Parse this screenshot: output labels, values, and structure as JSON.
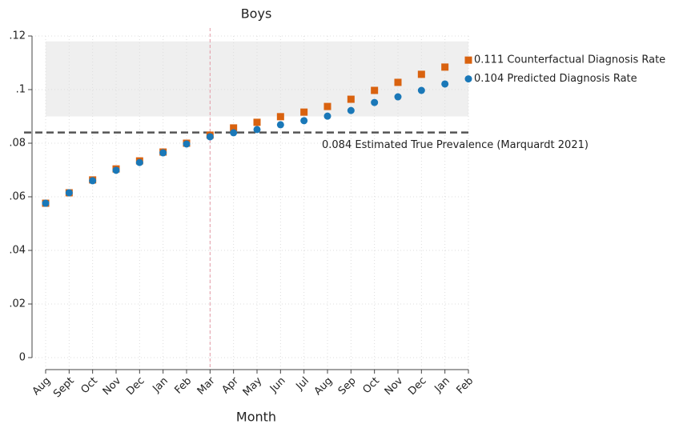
{
  "chart_data": {
    "type": "scatter",
    "title": "Boys",
    "x_label": "Month",
    "categories": [
      "Aug",
      "Sept",
      "Oct",
      "Nov",
      "Dec",
      "Jan",
      "Feb",
      "Mar",
      "Apr",
      "May",
      "Jun",
      "Jul",
      "Aug",
      "Sep",
      "Oct",
      "Nov",
      "Dec",
      "Jan",
      "Feb"
    ],
    "series": [
      {
        "name": "0.111 Counterfactual Diagnosis Rate",
        "color": "#d9620f",
        "marker": "square",
        "values": [
          0.0576,
          0.0615,
          0.0663,
          0.0704,
          0.0734,
          0.0767,
          0.08,
          0.083,
          0.0857,
          0.0878,
          0.0899,
          0.0916,
          0.0937,
          0.0964,
          0.0997,
          0.1027,
          0.1057,
          0.1084,
          0.111
        ]
      },
      {
        "name": "0.104 Predicted Diagnosis Rate",
        "color": "#1a78b8",
        "marker": "circle",
        "values": [
          0.0576,
          0.0615,
          0.066,
          0.0699,
          0.0728,
          0.0764,
          0.0797,
          0.0824,
          0.0839,
          0.0851,
          0.0869,
          0.0884,
          0.0901,
          0.0922,
          0.0952,
          0.0973,
          0.0997,
          0.1021,
          0.104
        ]
      }
    ],
    "reference_line": {
      "value": 0.084,
      "label": "0.084 Estimated True Prevalence (Marquardt 2021)"
    },
    "band": [
      0.09,
      0.118
    ],
    "vline": "Mar",
    "ylim": [
      0,
      0.12
    ],
    "yticks": [
      0,
      {
        "value": 0.02,
        "label": ".02"
      },
      {
        "value": 0.04,
        "label": ".04"
      },
      {
        "value": 0.06,
        "label": ".06"
      },
      {
        "value": 0.08,
        "label": ".08"
      },
      {
        "value": 0.1,
        "label": ".1"
      },
      {
        "value": 0.12,
        "label": ".12"
      }
    ],
    "grid": true
  }
}
